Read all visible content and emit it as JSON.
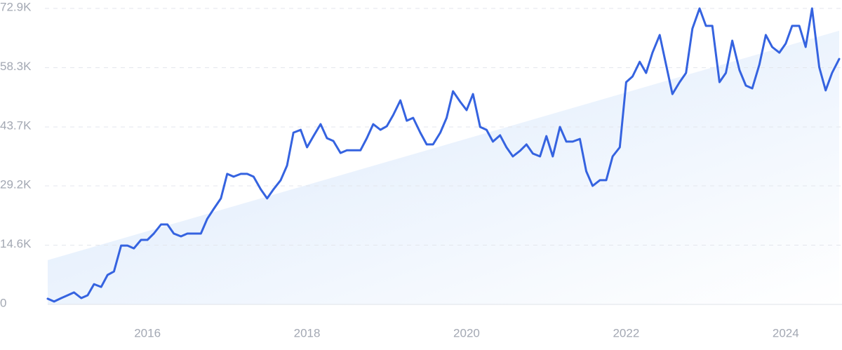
{
  "chart_data": {
    "type": "line",
    "x": [
      2014.75,
      2014.83,
      2014.92,
      2015,
      2015.08,
      2015.17,
      2015.25,
      2015.33,
      2015.42,
      2015.5,
      2015.58,
      2015.67,
      2015.75,
      2015.83,
      2015.92,
      2016,
      2016.08,
      2016.17,
      2016.25,
      2016.33,
      2016.42,
      2016.5,
      2016.58,
      2016.67,
      2016.75,
      2016.83,
      2016.92,
      2017,
      2017.08,
      2017.17,
      2017.25,
      2017.33,
      2017.42,
      2017.5,
      2017.58,
      2017.67,
      2017.75,
      2017.83,
      2017.92,
      2018,
      2018.08,
      2018.17,
      2018.25,
      2018.33,
      2018.42,
      2018.5,
      2018.58,
      2018.67,
      2018.75,
      2018.83,
      2018.92,
      2019,
      2019.08,
      2019.17,
      2019.25,
      2019.33,
      2019.42,
      2019.5,
      2019.58,
      2019.67,
      2019.75,
      2019.83,
      2019.92,
      2020,
      2020.08,
      2020.17,
      2020.25,
      2020.33,
      2020.42,
      2020.5,
      2020.58,
      2020.67,
      2020.75,
      2020.83,
      2020.92,
      2021,
      2021.08,
      2021.17,
      2021.25,
      2021.33,
      2021.42,
      2021.5,
      2021.58,
      2021.67,
      2021.75,
      2021.83,
      2021.92,
      2022,
      2022.08,
      2022.17,
      2022.25,
      2022.33,
      2022.42,
      2022.5,
      2022.58,
      2022.67,
      2022.75,
      2022.83,
      2022.92,
      2023,
      2023.08,
      2023.17,
      2023.25,
      2023.33,
      2023.42,
      2023.5,
      2023.58,
      2023.67,
      2023.75,
      2023.83,
      2023.92,
      2024,
      2024.08,
      2024.17,
      2024.25,
      2024.33,
      2024.42,
      2024.5,
      2024.58,
      2024.67
    ],
    "series": [
      {
        "color": "#3563e0",
        "values": [
          1400,
          700,
          1550,
          2250,
          2950,
          1550,
          2250,
          5000,
          4300,
          7250,
          8100,
          14500,
          14500,
          13800,
          15900,
          15900,
          17450,
          19700,
          19700,
          17450,
          16750,
          17450,
          17450,
          17450,
          21100,
          23500,
          26100,
          32150,
          31450,
          32150,
          32150,
          31450,
          28350,
          26100,
          28350,
          30600,
          34200,
          42300,
          43000,
          38700,
          41450,
          44400,
          40950,
          40250,
          37300,
          37950,
          37950,
          37950,
          40950,
          44400,
          43000,
          43900,
          46650,
          50250,
          45250,
          45950,
          42300,
          39400,
          39400,
          42300,
          45950,
          52500,
          49900,
          47850,
          51800,
          43700,
          43000,
          40100,
          41650,
          38700,
          36450,
          37850,
          39400,
          37150,
          36450,
          41450,
          36450,
          43700,
          40100,
          40100,
          40750,
          32800,
          29200,
          30600,
          30600,
          36450,
          38700,
          54750,
          56150,
          59750,
          57000,
          62000,
          66350,
          59100,
          51800,
          54750,
          57000,
          67900,
          72900,
          68600,
          68600,
          54750,
          57000,
          64950,
          57700,
          53900,
          53200,
          59100,
          66350,
          63400,
          62000,
          64250,
          68600,
          68600,
          63400,
          72900,
          58400,
          52700,
          57000,
          60450
        ]
      }
    ],
    "trend": {
      "x": [
        2014.75,
        2024.67
      ],
      "values": [
        10900,
        67400
      ]
    },
    "xlim": [
      2014.75,
      2024.67
    ],
    "xticks": [
      2016,
      2018,
      2020,
      2022,
      2024
    ],
    "ylim": [
      0,
      72900
    ],
    "yticks": [
      0,
      {
        "value": 14600,
        "label": "14.6K"
      },
      {
        "value": 29200,
        "label": "29.2K"
      },
      {
        "value": 43700,
        "label": "43.7K"
      },
      {
        "value": 58300,
        "label": "58.3K"
      },
      {
        "value": 72900,
        "label": "72.9K"
      }
    ],
    "grid": true
  }
}
